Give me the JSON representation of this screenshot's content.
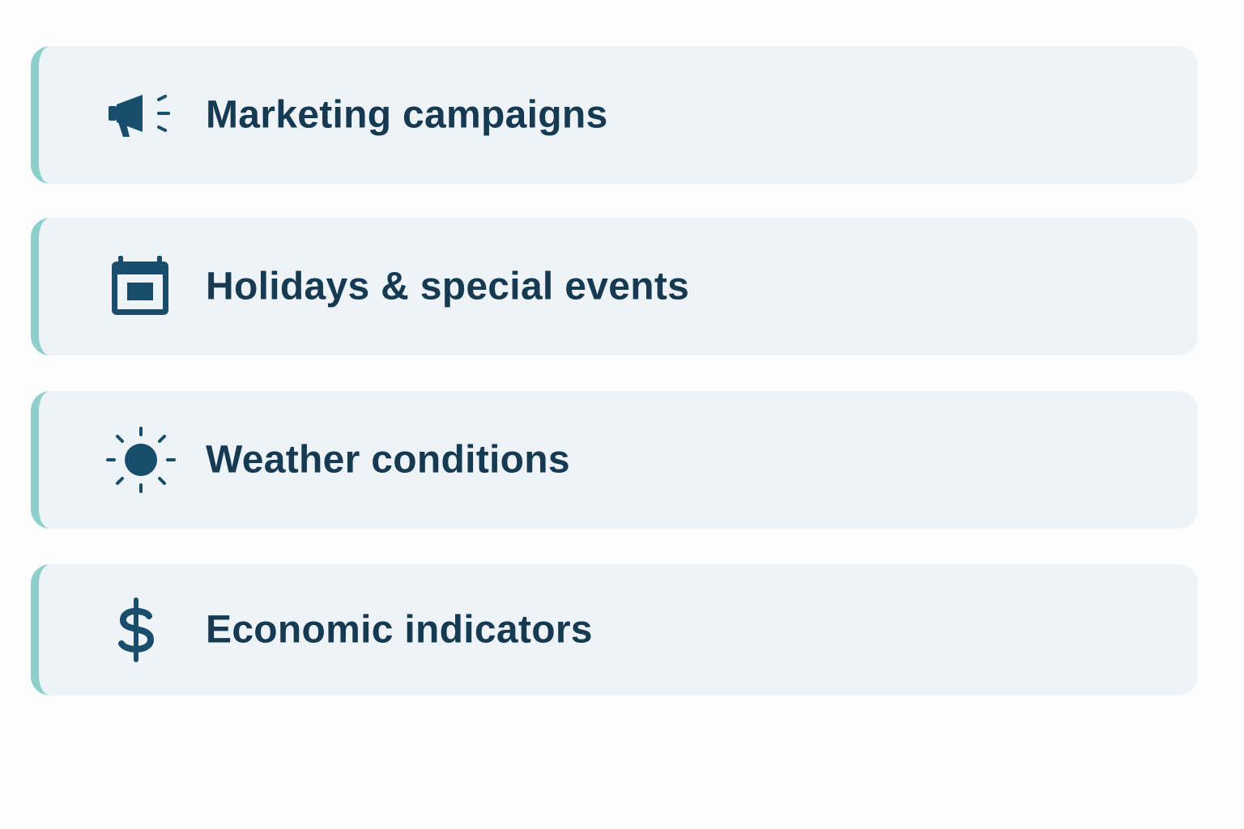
{
  "items": [
    {
      "label": "Marketing campaigns"
    },
    {
      "label": "Holidays & special events"
    },
    {
      "label": "Weather conditions"
    },
    {
      "label": "Economic indicators"
    }
  ]
}
